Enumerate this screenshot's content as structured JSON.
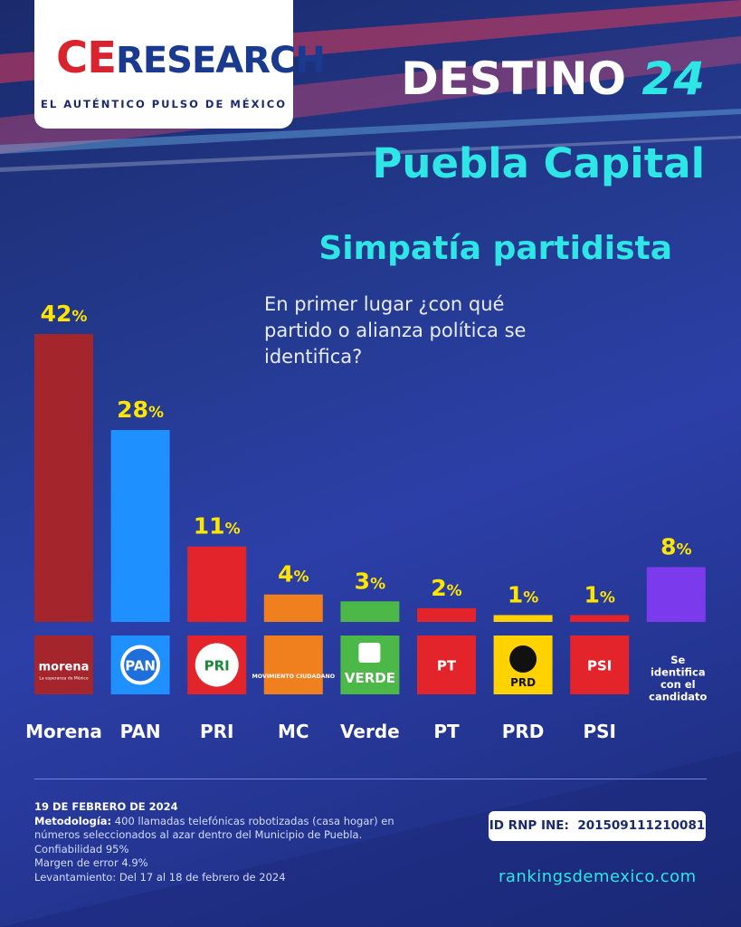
{
  "brand": {
    "logo_ce": "CE",
    "logo_research": "RESEARCH",
    "tagline": "EL AUTÉNTICO PULSO DE MÉXICO"
  },
  "header": {
    "title_word": "DESTINO",
    "title_number": "24",
    "location": "Puebla Capital",
    "topic": "Simpatía partidista",
    "question": "En primer lugar ¿con qué partido o alianza política se identifica?"
  },
  "chart_data": {
    "type": "bar",
    "title": "",
    "xlabel": "",
    "ylabel": "",
    "ylim": [
      0,
      42
    ],
    "grid": false,
    "legend": "none",
    "value_suffix": "%",
    "categories": [
      "Morena",
      "PAN",
      "PRI",
      "MC",
      "Verde",
      "PT",
      "PRD",
      "PSI",
      "Se identifica con el candidato"
    ],
    "values": [
      42,
      28,
      11,
      4,
      3,
      2,
      1,
      1,
      8
    ],
    "bar_colors": [
      "#a4262c",
      "#1e90ff",
      "#e3252b",
      "#f07f1e",
      "#4cb848",
      "#e3252b",
      "#ffd200",
      "#e3252b",
      "#7c3aed"
    ],
    "logo_labels": [
      {
        "name": "Morena",
        "text": "morena",
        "sub": "La esperanza de México"
      },
      {
        "name": "PAN",
        "text": "PAN"
      },
      {
        "name": "PRI",
        "text": "PRI"
      },
      {
        "name": "MC",
        "text": "MOVIMIENTO CIUDADANO"
      },
      {
        "name": "Verde",
        "text": "VERDE"
      },
      {
        "name": "PT",
        "text": "PT"
      },
      {
        "name": "PRD",
        "text": "PRD"
      },
      {
        "name": "PSI",
        "text": "PSI"
      },
      {
        "name": "Se identifica con el candidato",
        "text": "Se identifica con el candidato"
      }
    ],
    "category_labels": [
      "Morena",
      "PAN",
      "PRI",
      "MC",
      "Verde",
      "PT",
      "PRD",
      "PSI",
      ""
    ]
  },
  "footer": {
    "date": "19 DE FEBRERO DE 2024",
    "methodology_label": "Metodología:",
    "methodology_text": " 400 llamadas telefónicas robotizadas (casa hogar) en números seleccionados al azar dentro del Municipio de Puebla.",
    "confidence": "Confiabilidad 95%",
    "margin": "Margen de error 4.9%",
    "fieldwork": "Levantamiento: Del 17 al 18 de febrero de 2024",
    "rnp_label": "ID RNP INE:",
    "rnp_id": "201509111210081",
    "site": "rankingsdemexico.com"
  },
  "colors": {
    "accent_cyan": "#2ee6e6",
    "value_yellow": "#ffe600",
    "background": "#243a8f"
  }
}
